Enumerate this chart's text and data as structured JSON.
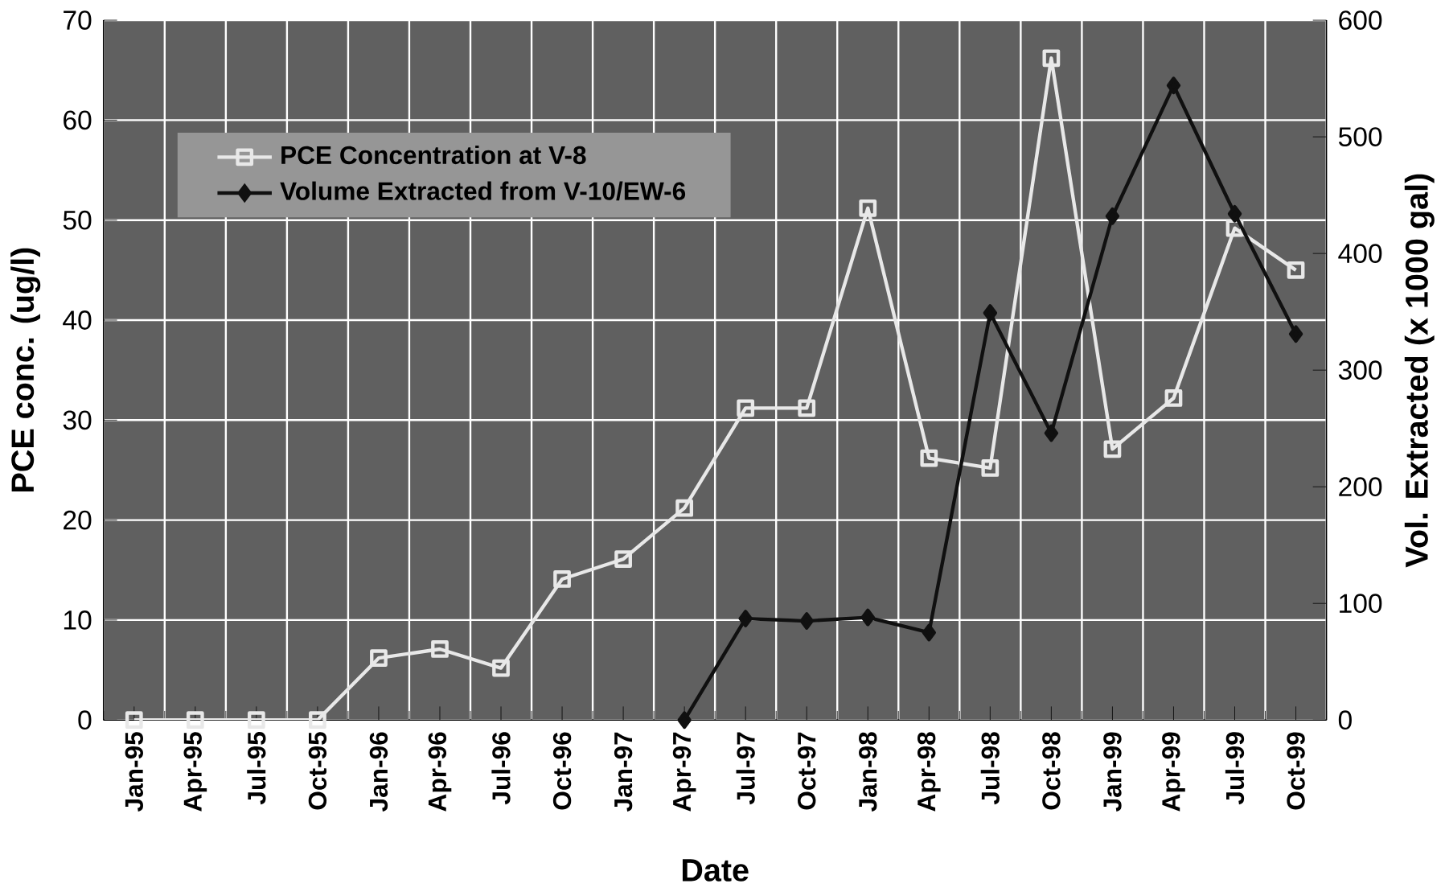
{
  "chart_data": {
    "type": "line",
    "xlabel": "Date",
    "ylabel": "PCE conc. (ug/l)",
    "y2label": "Vol. Extracted (x 1000 gal)",
    "categories": [
      "Jan-95",
      "Apr-95",
      "Jul-95",
      "Oct-95",
      "Jan-96",
      "Apr-96",
      "Jul-96",
      "Oct-96",
      "Jan-97",
      "Apr-97",
      "Jul-97",
      "Oct-97",
      "Jan-98",
      "Apr-98",
      "Jul-98",
      "Oct-98",
      "Jan-99",
      "Apr-99",
      "Jul-99",
      "Oct-99"
    ],
    "series": [
      {
        "name": "PCE Concentration at V-8",
        "color": "#e8e8e8",
        "marker": "square",
        "values": [
          0,
          0,
          0,
          0,
          6.2,
          7.1,
          5.2,
          14.1,
          16.1,
          21.2,
          31.2,
          31.2,
          51.2,
          26.2,
          25.2,
          66.2,
          27.1,
          32.2,
          49.2,
          45
        ]
      },
      {
        "name": "Volume Extracted from V-10/EW-6",
        "color": "#101010",
        "marker": "diamond",
        "axis": "y2",
        "values": [
          null,
          null,
          null,
          null,
          null,
          null,
          null,
          null,
          null,
          0,
          87,
          85,
          88,
          75,
          349,
          246,
          432,
          544,
          434,
          331
        ]
      }
    ],
    "ylim": [
      0,
      70
    ],
    "yticks": [
      0,
      10,
      20,
      30,
      40,
      50,
      60,
      70
    ],
    "y2lim": [
      0,
      600
    ],
    "y2ticks": [
      0,
      100,
      200,
      300,
      400,
      500,
      600
    ],
    "grid": true,
    "legend": "top left",
    "line_style": "solid"
  }
}
